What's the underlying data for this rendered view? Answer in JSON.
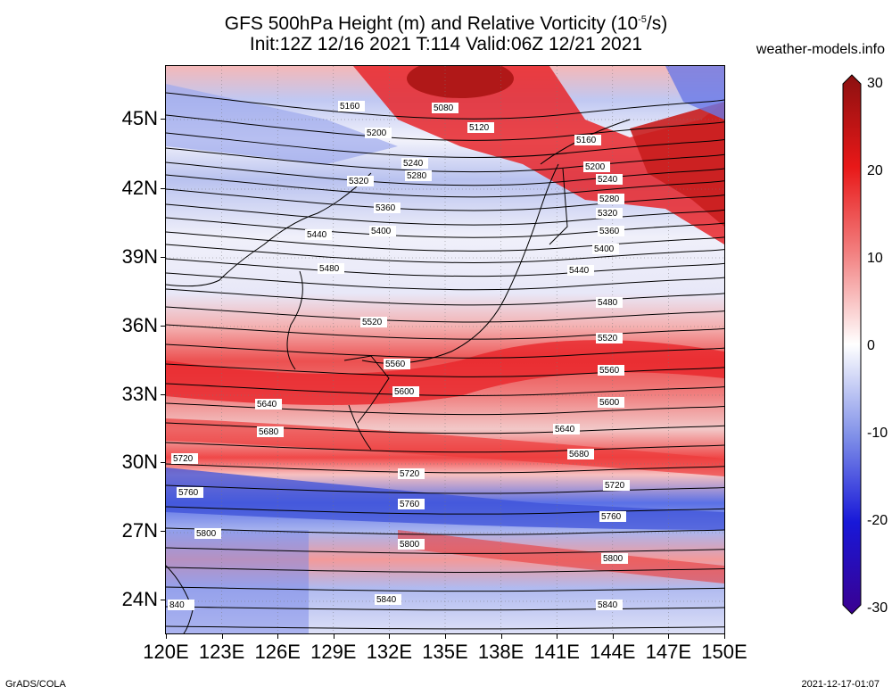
{
  "title_line1_prefix": "GFS 500hPa Height (m) and Relative Vorticity (10",
  "title_line1_exp": "-5",
  "title_line1_suffix": "/s)",
  "title_line2": "Init:12Z 12/16 2021 T:114 Valid:06Z 12/21 2021",
  "site": "weather-models.info",
  "footer_left": "GrADS/COLA",
  "footer_right": "2021-12-17-01:07",
  "lat_labels": [
    "45N",
    "42N",
    "39N",
    "36N",
    "33N",
    "30N",
    "27N",
    "24N"
  ],
  "lon_labels": [
    "120E",
    "123E",
    "126E",
    "129E",
    "132E",
    "135E",
    "138E",
    "141E",
    "144E",
    "147E",
    "150E"
  ],
  "colorbar_labels": [
    "30",
    "20",
    "10",
    "0",
    "-10",
    "-20",
    "-30"
  ],
  "contour_labels": [
    "5080",
    "5120",
    "5160",
    "5160",
    "5200",
    "5200",
    "5240",
    "5240",
    "5280",
    "5280",
    "5320",
    "5320",
    "5360",
    "5360",
    "5400",
    "5400",
    "5440",
    "5440",
    "5480",
    "5480",
    "5520",
    "5520",
    "5560",
    "5560",
    "5600",
    "5600",
    "5640",
    "5640",
    "5680",
    "5680",
    "5720",
    "5720",
    "5720",
    "5760",
    "5760",
    "5760",
    "5800",
    "5800",
    "5800",
    "5840",
    "5840",
    "840"
  ],
  "colors": {
    "vort_strong_pos": "#b01818",
    "vort_pos": "#e8262a",
    "vort_weak_pos": "#f4a6a4",
    "zero": "#ffffff",
    "vort_weak_neg": "#b9c2ef",
    "vort_neg": "#4a5fe0",
    "vort_strong_neg": "#1818b0"
  }
}
